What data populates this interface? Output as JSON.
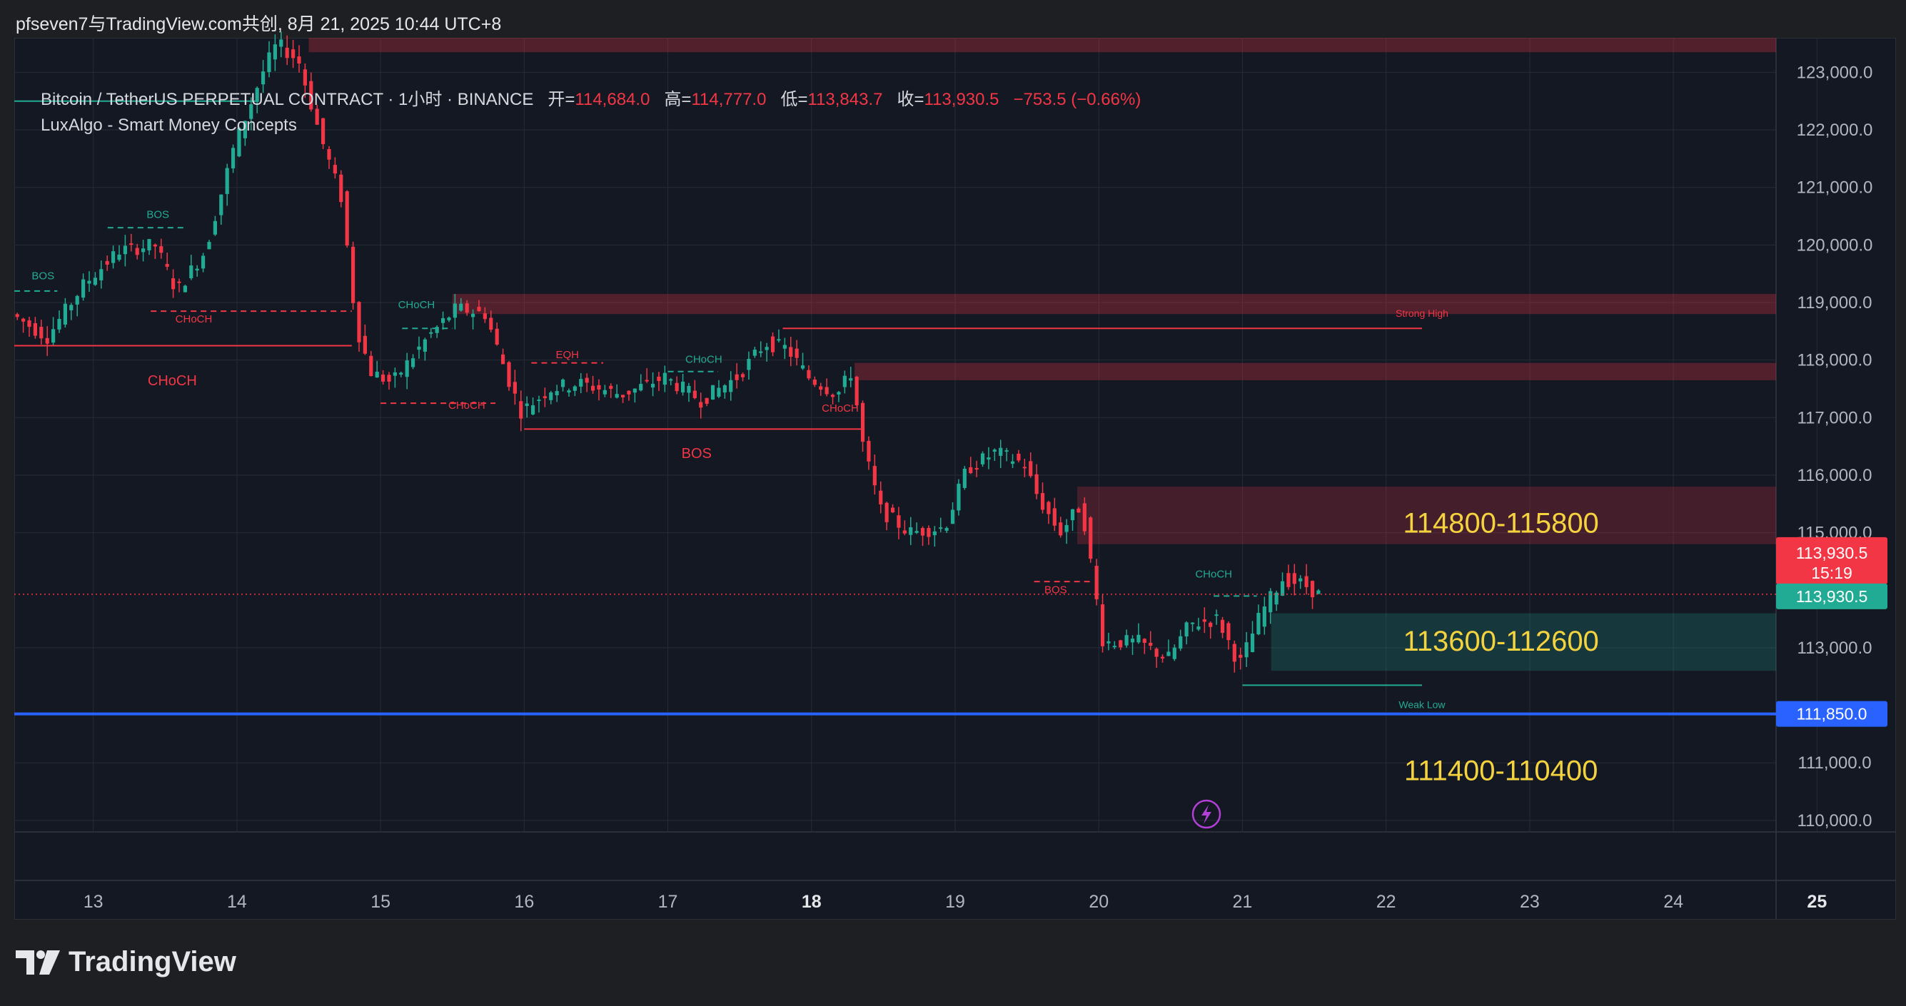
{
  "header": {
    "caption": "pfseven7与TradingView.com共创, 8月 21, 2025 10:44 UTC+8"
  },
  "legend": {
    "symbol": "Bitcoin / TetherUS PERPETUAL CONTRACT · 1小时 · BINANCE",
    "open_label": "开=",
    "open_value": "114,684.0",
    "high_label": "高=",
    "high_value": "114,777.0",
    "low_label": "低=",
    "low_value": "113,843.7",
    "close_label": "收=",
    "close_value": "113,930.5",
    "change": "−753.5 (−0.66%)",
    "indicator": "LuxAlgo - Smart Money Concepts"
  },
  "brand": {
    "name": "TradingView"
  },
  "colors": {
    "up": "#22ab94",
    "down": "#f23645",
    "blue_line": "#2962ff",
    "zone_text": "#f5d33f",
    "bg": "#141823"
  },
  "chart_data": {
    "type": "candlestick",
    "timeframe": "1h",
    "ylim": [
      109800,
      123600
    ],
    "y_ticks": [
      {
        "v": 123000,
        "t": "123,000.0"
      },
      {
        "v": 122000,
        "t": "122,000.0"
      },
      {
        "v": 121000,
        "t": "121,000.0"
      },
      {
        "v": 120000,
        "t": "120,000.0"
      },
      {
        "v": 119000,
        "t": "119,000.0"
      },
      {
        "v": 118000,
        "t": "118,000.0"
      },
      {
        "v": 117000,
        "t": "117,000.0"
      },
      {
        "v": 116000,
        "t": "116,000.0"
      },
      {
        "v": 115000,
        "t": "115,000.0"
      },
      {
        "v": 113000,
        "t": "113,000.0"
      },
      {
        "v": 111000,
        "t": "111,000.0"
      },
      {
        "v": 110000,
        "t": "110,000.0"
      }
    ],
    "x_ticks": [
      {
        "d": 13,
        "t": "13",
        "bold": false
      },
      {
        "d": 14,
        "t": "14",
        "bold": false
      },
      {
        "d": 15,
        "t": "15",
        "bold": false
      },
      {
        "d": 16,
        "t": "16",
        "bold": false
      },
      {
        "d": 17,
        "t": "17",
        "bold": false
      },
      {
        "d": 18,
        "t": "18",
        "bold": true
      },
      {
        "d": 19,
        "t": "19",
        "bold": false
      },
      {
        "d": 20,
        "t": "20",
        "bold": false
      },
      {
        "d": 21,
        "t": "21",
        "bold": false
      },
      {
        "d": 22,
        "t": "22",
        "bold": false
      },
      {
        "d": 23,
        "t": "23",
        "bold": false
      },
      {
        "d": 24,
        "t": "24",
        "bold": false
      },
      {
        "d": 25,
        "t": "25",
        "bold": true
      }
    ],
    "x_domain": [
      12.45,
      25.55
    ],
    "path": [
      [
        12.45,
        118800
      ],
      [
        12.7,
        118400
      ],
      [
        12.95,
        119300
      ],
      [
        13.2,
        119900
      ],
      [
        13.45,
        120000
      ],
      [
        13.6,
        119200
      ],
      [
        13.8,
        119900
      ],
      [
        14.0,
        121700
      ],
      [
        14.2,
        123000
      ],
      [
        14.3,
        123500
      ],
      [
        14.45,
        123200
      ],
      [
        14.6,
        121900
      ],
      [
        14.75,
        120800
      ],
      [
        14.85,
        118600
      ],
      [
        14.95,
        117800
      ],
      [
        15.1,
        117600
      ],
      [
        15.35,
        118400
      ],
      [
        15.55,
        118900
      ],
      [
        15.75,
        118800
      ],
      [
        15.92,
        117600
      ],
      [
        16.0,
        117100
      ],
      [
        16.2,
        117500
      ],
      [
        16.4,
        117600
      ],
      [
        16.7,
        117400
      ],
      [
        17.0,
        117700
      ],
      [
        17.25,
        117300
      ],
      [
        17.5,
        117700
      ],
      [
        17.7,
        118300
      ],
      [
        17.85,
        118200
      ],
      [
        18.0,
        117700
      ],
      [
        18.2,
        117400
      ],
      [
        18.3,
        117800
      ],
      [
        18.38,
        116500
      ],
      [
        18.5,
        115400
      ],
      [
        18.7,
        115000
      ],
      [
        18.95,
        115100
      ],
      [
        19.1,
        116100
      ],
      [
        19.3,
        116400
      ],
      [
        19.5,
        116200
      ],
      [
        19.6,
        115600
      ],
      [
        19.75,
        115000
      ],
      [
        19.9,
        115500
      ],
      [
        20.05,
        113100
      ],
      [
        20.3,
        113100
      ],
      [
        20.5,
        112800
      ],
      [
        20.65,
        113400
      ],
      [
        20.85,
        113500
      ],
      [
        21.0,
        112700
      ],
      [
        21.15,
        113600
      ],
      [
        21.3,
        114200
      ],
      [
        21.45,
        114100
      ],
      [
        21.55,
        113930
      ]
    ],
    "current_price": {
      "value": 113930.5,
      "label": "113,930.5",
      "countdown": "15:19"
    },
    "blue_line": {
      "value": 111850,
      "label": "111,850.0"
    },
    "zones": [
      {
        "label": "114800-115800",
        "lo": 114800,
        "hi": 115800,
        "x0": 19.85,
        "color": "#f23645",
        "text_y": 115000
      },
      {
        "label": "113600-112600",
        "lo": 112600,
        "hi": 113600,
        "x0": 21.2,
        "color": "#22ab94",
        "text_y": 112950
      },
      {
        "label": "111400-110400",
        "lo": 110400,
        "hi": 111400,
        "x0": null,
        "color": "none",
        "text_y": 110700
      }
    ],
    "resistance_bands": [
      {
        "lo": 123350,
        "hi": 123600,
        "x0": 14.5
      },
      {
        "lo": 118800,
        "hi": 119150,
        "x0": 15.5
      },
      {
        "lo": 117650,
        "hi": 117950,
        "x0": 18.3
      }
    ],
    "labels": [
      {
        "t": "BOS",
        "x": 12.65,
        "y": 119400,
        "c": "up",
        "size": 15
      },
      {
        "t": "BOS",
        "x": 13.45,
        "y": 120470,
        "c": "up",
        "size": 15
      },
      {
        "t": "CHoCH",
        "x": 13.7,
        "y": 118650,
        "c": "down",
        "size": 15
      },
      {
        "t": "CHoCH",
        "x": 13.55,
        "y": 117560,
        "c": "down",
        "size": 20
      },
      {
        "t": "CHoCH",
        "x": 15.25,
        "y": 118900,
        "c": "up",
        "size": 15
      },
      {
        "t": "CHoCH",
        "x": 15.6,
        "y": 117150,
        "c": "down",
        "size": 15
      },
      {
        "t": "EQH",
        "x": 16.3,
        "y": 118030,
        "c": "down",
        "size": 15
      },
      {
        "t": "CHoCH",
        "x": 17.25,
        "y": 117950,
        "c": "up",
        "size": 15
      },
      {
        "t": "CHoCH",
        "x": 18.2,
        "y": 117100,
        "c": "down",
        "size": 15
      },
      {
        "t": "BOS",
        "x": 17.2,
        "y": 116300,
        "c": "down",
        "size": 20
      },
      {
        "t": "BOS",
        "x": 19.7,
        "y": 113950,
        "c": "down",
        "size": 15
      },
      {
        "t": "CHoCH",
        "x": 20.8,
        "y": 114220,
        "c": "up",
        "size": 15
      },
      {
        "t": "Strong High",
        "x": 22.25,
        "y": 118750,
        "c": "down",
        "size": 14
      },
      {
        "t": "Weak Low",
        "x": 22.25,
        "y": 111950,
        "c": "up",
        "size": 14
      }
    ]
  }
}
